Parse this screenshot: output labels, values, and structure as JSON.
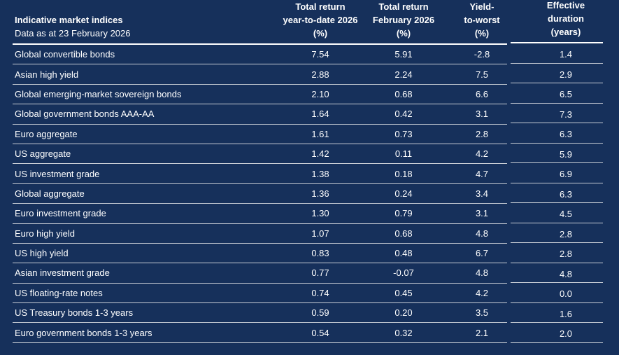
{
  "table": {
    "title": "Indicative market indices",
    "subtitle": "Data as at 23 February 2026",
    "columns": {
      "ytd": {
        "line1": "Total return",
        "line2": "year-to-date 2026",
        "line3": "(%)"
      },
      "feb": {
        "line1": "Total return",
        "line2": "February 2026",
        "line3": "(%)"
      },
      "ytw": {
        "line1": "Yield-",
        "line2": "to-worst",
        "line3": "(%)"
      },
      "duration": {
        "line1": "Effective",
        "line2": "duration",
        "line3": "(years)"
      }
    },
    "rows": [
      {
        "label": "Global convertible bonds",
        "ytd": "7.54",
        "feb": "5.91",
        "ytw": "-2.8",
        "duration": "1.4"
      },
      {
        "label": "Asian high yield",
        "ytd": "2.88",
        "feb": "2.24",
        "ytw": "7.5",
        "duration": "2.9"
      },
      {
        "label": "Global emerging-market sovereign bonds",
        "ytd": "2.10",
        "feb": "0.68",
        "ytw": "6.6",
        "duration": "6.5"
      },
      {
        "label": "Global government bonds AAA-AA",
        "ytd": "1.64",
        "feb": "0.42",
        "ytw": "3.1",
        "duration": "7.3"
      },
      {
        "label": "Euro aggregate",
        "ytd": "1.61",
        "feb": "0.73",
        "ytw": "2.8",
        "duration": "6.3"
      },
      {
        "label": "US aggregate",
        "ytd": "1.42",
        "feb": "0.11",
        "ytw": "4.2",
        "duration": "5.9"
      },
      {
        "label": "US investment grade",
        "ytd": "1.38",
        "feb": "0.18",
        "ytw": "4.7",
        "duration": "6.9"
      },
      {
        "label": "Global aggregate",
        "ytd": "1.36",
        "feb": "0.24",
        "ytw": "3.4",
        "duration": "6.3"
      },
      {
        "label": "Euro investment grade",
        "ytd": "1.30",
        "feb": "0.79",
        "ytw": "3.1",
        "duration": "4.5"
      },
      {
        "label": "Euro high yield",
        "ytd": "1.07",
        "feb": "0.68",
        "ytw": "4.8",
        "duration": "2.8"
      },
      {
        "label": "US high yield",
        "ytd": "0.83",
        "feb": "0.48",
        "ytw": "6.7",
        "duration": "2.8"
      },
      {
        "label": "Asian investment grade",
        "ytd": "0.77",
        "feb": "-0.07",
        "ytw": "4.8",
        "duration": "4.8"
      },
      {
        "label": "US floating-rate notes",
        "ytd": "0.74",
        "feb": "0.45",
        "ytw": "4.2",
        "duration": "0.0"
      },
      {
        "label": "US Treasury bonds 1-3 years",
        "ytd": "0.59",
        "feb": "0.20",
        "ytw": "3.5",
        "duration": "1.6"
      },
      {
        "label": "Euro government bonds 1-3 years",
        "ytd": "0.54",
        "feb": "0.32",
        "ytw": "2.1",
        "duration": "2.0"
      }
    ]
  },
  "colors": {
    "background": "#16305b",
    "text": "#ffffff",
    "header_divider": "#ffffff",
    "row_divider": "#c8cdd5"
  }
}
